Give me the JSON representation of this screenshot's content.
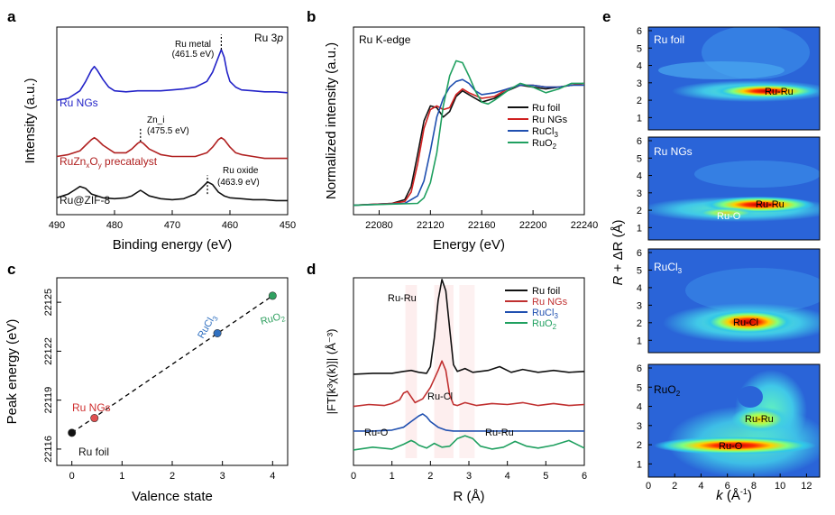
{
  "chart_data": [
    {
      "panel": "a",
      "type": "line",
      "title": "Ru 3p",
      "xlabel": "Binding energy (eV)",
      "ylabel": "Intensity (a.u.)",
      "xlim": [
        490,
        450
      ],
      "xticks": [
        "490",
        "480",
        "470",
        "460",
        "450"
      ],
      "series": [
        {
          "name": "Ru NGs",
          "color": "#2323c8",
          "x": [
            490,
            488,
            486,
            485,
            484,
            483.5,
            483,
            482,
            481,
            480,
            478,
            476,
            474,
            472,
            470,
            468,
            466,
            464,
            463,
            462,
            461.5,
            461,
            460.5,
            460,
            459,
            458,
            456,
            454,
            452,
            450
          ],
          "y": [
            0.61,
            0.62,
            0.66,
            0.71,
            0.77,
            0.79,
            0.77,
            0.72,
            0.68,
            0.66,
            0.655,
            0.66,
            0.66,
            0.66,
            0.665,
            0.67,
            0.68,
            0.71,
            0.76,
            0.84,
            0.88,
            0.84,
            0.76,
            0.71,
            0.68,
            0.665,
            0.66,
            0.655,
            0.655,
            0.65
          ]
        },
        {
          "name": "RuZnxOy precatalyst",
          "color": "#b02020",
          "x": [
            490,
            488,
            486,
            485,
            484,
            483.5,
            483,
            482,
            480,
            478,
            477,
            476,
            475.5,
            475,
            474,
            472,
            470,
            468,
            466,
            464,
            463,
            462,
            461.5,
            461,
            460,
            459,
            458,
            456,
            454,
            452,
            450
          ],
          "y": [
            0.31,
            0.32,
            0.34,
            0.37,
            0.4,
            0.41,
            0.4,
            0.37,
            0.33,
            0.33,
            0.35,
            0.38,
            0.39,
            0.38,
            0.35,
            0.32,
            0.31,
            0.31,
            0.31,
            0.33,
            0.36,
            0.4,
            0.41,
            0.4,
            0.36,
            0.33,
            0.32,
            0.31,
            0.3,
            0.3,
            0.3
          ]
        },
        {
          "name": "Ru@ZIF-8",
          "color": "#111111",
          "x": [
            490,
            488,
            487,
            486,
            485,
            484,
            482,
            480,
            478,
            477,
            476,
            475.5,
            475,
            474,
            472,
            470,
            468,
            466,
            465,
            464,
            463.9,
            463,
            462,
            461,
            460,
            458,
            456,
            454,
            452,
            450
          ],
          "y": [
            0.09,
            0.11,
            0.13,
            0.15,
            0.14,
            0.11,
            0.09,
            0.085,
            0.09,
            0.1,
            0.12,
            0.13,
            0.12,
            0.1,
            0.085,
            0.08,
            0.085,
            0.11,
            0.14,
            0.17,
            0.175,
            0.16,
            0.12,
            0.1,
            0.09,
            0.085,
            0.08,
            0.08,
            0.075,
            0.075
          ]
        }
      ],
      "annotations": [
        {
          "text": "Ru metal",
          "text2": "(461.5 eV)",
          "x": 461.5
        },
        {
          "text": "Zn_i",
          "text2": "(475.5 eV)",
          "x": 475.5
        },
        {
          "text": "Ru oxide",
          "text2": "(463.9 eV)",
          "x": 463.9
        }
      ],
      "labels": {
        "ru_ngs": "Ru NGs",
        "precat_a": "RuZn",
        "precat_b": "x",
        "precat_c": "O",
        "precat_d": "y",
        "precat_e": " precatalyst",
        "zif": "Ru@ZIF-8",
        "title_a": "Ru 3",
        "title_b": "p"
      }
    },
    {
      "panel": "b",
      "type": "line",
      "title": "Ru K-edge",
      "xlabel": "Energy (eV)",
      "ylabel": "Normalized intensity (a.u.)",
      "xlim": [
        22060,
        22240
      ],
      "xticks": [
        "22080",
        "22120",
        "22160",
        "22200",
        "22240"
      ],
      "series": [
        {
          "name": "Ru foil",
          "color": "#111111",
          "x": [
            22060,
            22090,
            22100,
            22105,
            22110,
            22115,
            22120,
            22125,
            22130,
            22135,
            22140,
            22145,
            22150,
            22160,
            22170,
            22180,
            22190,
            22200,
            22210,
            22220,
            22230,
            22240
          ],
          "y": [
            0.05,
            0.06,
            0.08,
            0.15,
            0.32,
            0.5,
            0.58,
            0.57,
            0.52,
            0.55,
            0.63,
            0.66,
            0.64,
            0.6,
            0.62,
            0.66,
            0.69,
            0.68,
            0.67,
            0.68,
            0.69,
            0.7
          ]
        },
        {
          "name": "Ru NGs",
          "color": "#d02020",
          "x": [
            22060,
            22090,
            22100,
            22105,
            22110,
            22115,
            22120,
            22125,
            22130,
            22135,
            22140,
            22145,
            22150,
            22160,
            22170,
            22180,
            22190,
            22200,
            22210,
            22220,
            22230,
            22240
          ],
          "y": [
            0.05,
            0.06,
            0.07,
            0.12,
            0.27,
            0.46,
            0.56,
            0.58,
            0.56,
            0.57,
            0.64,
            0.67,
            0.65,
            0.62,
            0.63,
            0.67,
            0.69,
            0.69,
            0.68,
            0.68,
            0.69,
            0.7
          ]
        },
        {
          "name": "RuCl3",
          "color": "#2050b0",
          "x": [
            22060,
            22100,
            22110,
            22115,
            22120,
            22125,
            22130,
            22135,
            22140,
            22145,
            22150,
            22155,
            22160,
            22170,
            22180,
            22190,
            22200,
            22210,
            22220,
            22230,
            22240
          ],
          "y": [
            0.05,
            0.06,
            0.1,
            0.18,
            0.34,
            0.52,
            0.62,
            0.68,
            0.71,
            0.72,
            0.7,
            0.66,
            0.64,
            0.65,
            0.67,
            0.69,
            0.69,
            0.68,
            0.68,
            0.69,
            0.69
          ]
        },
        {
          "name": "RuO2",
          "color": "#20a060",
          "x": [
            22060,
            22110,
            22115,
            22120,
            22125,
            22130,
            22135,
            22140,
            22145,
            22150,
            22155,
            22160,
            22165,
            22170,
            22180,
            22190,
            22200,
            22210,
            22220,
            22230,
            22240
          ],
          "y": [
            0.05,
            0.06,
            0.09,
            0.17,
            0.33,
            0.58,
            0.74,
            0.82,
            0.81,
            0.74,
            0.66,
            0.6,
            0.59,
            0.61,
            0.66,
            0.7,
            0.68,
            0.65,
            0.67,
            0.7,
            0.7
          ]
        }
      ],
      "legend": [
        "Ru foil",
        "Ru NGs",
        "RuCl",
        "RuO"
      ]
    },
    {
      "panel": "c",
      "type": "scatter",
      "xlabel": "Valence state",
      "ylabel": "Peak energy (eV)",
      "xlim": [
        -0.3,
        4.3
      ],
      "ylim": [
        22115,
        22126.5
      ],
      "xticks": [
        "0",
        "1",
        "2",
        "3",
        "4"
      ],
      "yticks": [
        "22116",
        "22119",
        "22122",
        "22125"
      ],
      "points": [
        {
          "name": "Ru foil",
          "x": 0,
          "y": 22117.0,
          "color": "#111111"
        },
        {
          "name": "Ru NGs",
          "x": 0.45,
          "y": 22117.9,
          "color": "#e05050"
        },
        {
          "name": "RuCl3",
          "x": 2.9,
          "y": 22123.1,
          "color": "#3070c0"
        },
        {
          "name": "RuO2",
          "x": 4.0,
          "y": 22125.4,
          "color": "#30a060"
        }
      ],
      "fit_line": {
        "x": [
          0,
          4.0
        ],
        "y": [
          22117.0,
          22125.4
        ]
      }
    },
    {
      "panel": "d",
      "type": "line",
      "xlabel": "R (Å)",
      "ylabel": "|FT[k³χ(k)]| (Å⁻³)",
      "xlim": [
        0,
        6
      ],
      "xticks": [
        "0",
        "1",
        "2",
        "3",
        "4",
        "5",
        "6"
      ],
      "series": [
        {
          "name": "Ru foil",
          "color": "#111111",
          "x": [
            0,
            0.5,
            1.0,
            1.3,
            1.5,
            1.7,
            1.9,
            2.0,
            2.1,
            2.2,
            2.3,
            2.4,
            2.5,
            2.6,
            2.7,
            2.9,
            3.1,
            3.5,
            3.8,
            4.1,
            4.4,
            4.8,
            5.2,
            5.6,
            6.0
          ],
          "y": [
            0.82,
            0.83,
            0.83,
            0.85,
            0.86,
            0.84,
            0.83,
            0.9,
            1.2,
            1.6,
            1.82,
            1.7,
            1.3,
            0.92,
            0.85,
            0.88,
            0.84,
            0.86,
            0.9,
            0.84,
            0.87,
            0.84,
            0.86,
            0.84,
            0.85
          ]
        },
        {
          "name": "Ru NGs",
          "color": "#c03030",
          "x": [
            0,
            0.4,
            0.8,
            1.0,
            1.2,
            1.3,
            1.4,
            1.5,
            1.6,
            1.8,
            2.0,
            2.2,
            2.3,
            2.4,
            2.5,
            2.6,
            2.7,
            2.9,
            3.2,
            3.6,
            4.0,
            4.4,
            4.8,
            5.2,
            5.6,
            6.0
          ],
          "y": [
            0.48,
            0.5,
            0.49,
            0.51,
            0.55,
            0.62,
            0.64,
            0.58,
            0.52,
            0.56,
            0.68,
            0.86,
            0.96,
            0.86,
            0.6,
            0.5,
            0.49,
            0.52,
            0.49,
            0.51,
            0.5,
            0.52,
            0.49,
            0.51,
            0.49,
            0.5
          ]
        },
        {
          "name": "RuCl3",
          "color": "#2050b0",
          "x": [
            0,
            0.5,
            1.0,
            1.3,
            1.5,
            1.7,
            1.8,
            1.9,
            2.0,
            2.2,
            2.4,
            2.6,
            3.0,
            3.5,
            4.0,
            4.5,
            5.0,
            5.5,
            6.0
          ],
          "y": [
            0.22,
            0.22,
            0.23,
            0.26,
            0.32,
            0.38,
            0.4,
            0.37,
            0.32,
            0.26,
            0.23,
            0.22,
            0.22,
            0.22,
            0.22,
            0.22,
            0.22,
            0.22,
            0.22
          ]
        },
        {
          "name": "RuO2",
          "color": "#20a060",
          "x": [
            0,
            0.5,
            1.0,
            1.3,
            1.5,
            1.6,
            1.7,
            1.9,
            2.1,
            2.3,
            2.5,
            2.7,
            2.9,
            3.1,
            3.3,
            3.6,
            3.9,
            4.2,
            4.5,
            4.8,
            5.2,
            5.6,
            6.0
          ],
          "y": [
            0.02,
            0.05,
            0.03,
            0.08,
            0.12,
            0.1,
            0.07,
            0.04,
            0.09,
            0.05,
            0.06,
            0.14,
            0.17,
            0.14,
            0.06,
            0.03,
            0.05,
            0.11,
            0.06,
            0.04,
            0.07,
            0.12,
            0.04
          ]
        }
      ],
      "annotations": [
        "Ru-Ru",
        "Ru-Cl",
        "Ru-O",
        "Ru-Ru"
      ],
      "legend": [
        "Ru foil",
        "Ru NGs",
        "RuCl",
        "RuO"
      ]
    },
    {
      "panel": "e",
      "type": "heatmap",
      "xlabel": "k (Å⁻¹)",
      "ylabel": "R + ΔR (Å)",
      "xlim": [
        0,
        13
      ],
      "ylim": [
        0,
        6
      ],
      "xticks": [
        "0",
        "2",
        "4",
        "6",
        "8",
        "10",
        "12"
      ],
      "yticks": [
        "1",
        "2",
        "3",
        "4",
        "5",
        "6"
      ],
      "maps": [
        {
          "name": "Ru foil",
          "bonds": [
            {
              "label": "Ru-Ru",
              "k": 9.5,
              "R": 2.4
            }
          ]
        },
        {
          "name": "Ru NGs",
          "bonds": [
            {
              "label": "Ru-Ru",
              "k": 9.0,
              "R": 2.4
            },
            {
              "label": "Ru-O",
              "k": 5.2,
              "R": 1.6
            }
          ]
        },
        {
          "name": "RuCl3",
          "bonds": [
            {
              "label": "Ru-Cl",
              "k": 7.0,
              "R": 1.9
            }
          ]
        },
        {
          "name": "RuO2",
          "bonds": [
            {
              "label": "Ru-Ru",
              "k": 9.2,
              "R": 3.0
            },
            {
              "label": "Ru-O",
              "k": 6.4,
              "R": 1.5
            }
          ]
        }
      ]
    }
  ],
  "panel_letters": {
    "a": "a",
    "b": "b",
    "c": "c",
    "d": "d",
    "e": "e"
  },
  "text": {
    "b_legend_foil": "Ru foil",
    "b_legend_ngs": "Ru NGs",
    "b_legend_cl": "RuCl",
    "b_legend_o": "RuO",
    "sub3": "3",
    "sub2": "2",
    "c_ru_ngs": "Ru NGs",
    "c_ru_foil": "Ru foil",
    "c_rucl": "RuCl",
    "c_ruo": "RuO",
    "d_ruru1": "Ru-Ru",
    "d_rucl": "Ru-Cl",
    "d_ruo": "Ru-O",
    "d_ruru2": "Ru-Ru",
    "e_foil": "Ru foil",
    "e_ngs": "Ru NGs",
    "e_rucl": "RuCl",
    "e_ruo": "RuO",
    "e_l1": "Ru-Ru",
    "e_l2": "Ru-Ru",
    "e_l3": "Ru-O",
    "e_l4": "Ru-Cl",
    "e_l5": "Ru-Ru",
    "e_l6": "Ru-O",
    "e_ylabel_a": "R",
    "e_ylabel_b": " + ΔR (Å)",
    "e_xlabel_a": "k",
    "e_xlabel_b": " (Å",
    "e_xlabel_c": "-1",
    "e_xlabel_d": ")",
    "d_ylabel": "|FT[k³χ(k)]| (Å⁻³)"
  }
}
